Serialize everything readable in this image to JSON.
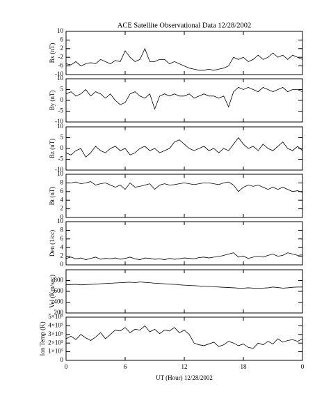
{
  "chart_data": [
    {
      "type": "line",
      "title": "ACE Satellite Observational Data   12/28/2002",
      "ylabel": "Bx (nT)",
      "ylim": [
        -10,
        10
      ],
      "yticks": [
        -10,
        -6,
        -2,
        2,
        6,
        10
      ],
      "xlim": [
        0,
        24
      ],
      "color": "#000000",
      "x": [
        0,
        0.5,
        1,
        1.5,
        2,
        2.5,
        3,
        3.5,
        4,
        4.5,
        5,
        5.5,
        6,
        6.5,
        7,
        7.5,
        8,
        8.5,
        9,
        9.5,
        10,
        10.5,
        11,
        11.5,
        12,
        12.5,
        13,
        13.5,
        14,
        14.5,
        15,
        15.5,
        16,
        16.5,
        17,
        17.5,
        18,
        18.5,
        19,
        19.5,
        20,
        20.5,
        21,
        21.5,
        22,
        22.5,
        23,
        23.5,
        24
      ],
      "values": [
        -5,
        -5.5,
        -4,
        -6,
        -5,
        -4.5,
        -5,
        -3,
        -4,
        -5,
        -3.5,
        -4,
        1,
        -2,
        -4,
        -3,
        2,
        -4,
        -4,
        -3,
        -3,
        -5,
        -4,
        -5,
        -6,
        -7,
        -7.5,
        -8,
        -8,
        -7.5,
        -8,
        -7.5,
        -7,
        -6,
        -2,
        -3,
        -2,
        -4,
        -3,
        -1,
        -3,
        -2,
        0,
        -2,
        -1,
        -3,
        -1,
        -2,
        -3
      ]
    },
    {
      "type": "line",
      "ylabel": "By (nT)",
      "ylim": [
        -10,
        10
      ],
      "yticks": [
        -10,
        -5,
        0,
        5,
        10
      ],
      "xlim": [
        0,
        24
      ],
      "color": "#000000",
      "x": [
        0,
        0.5,
        1,
        1.5,
        2,
        2.5,
        3,
        3.5,
        4,
        4.5,
        5,
        5.5,
        6,
        6.5,
        7,
        7.5,
        8,
        8.5,
        9,
        9.5,
        10,
        10.5,
        11,
        11.5,
        12,
        12.5,
        13,
        13.5,
        14,
        14.5,
        15,
        15.5,
        16,
        16.5,
        17,
        17.5,
        18,
        18.5,
        19,
        19.5,
        20,
        20.5,
        21,
        21.5,
        22,
        22.5,
        23,
        23.5,
        24
      ],
      "values": [
        3,
        4,
        2,
        3,
        5,
        2,
        4,
        3,
        1,
        3,
        0,
        -2,
        -1,
        3,
        4,
        2,
        1,
        3,
        -4,
        2,
        3,
        2,
        3,
        2,
        2,
        3,
        1,
        2,
        3,
        2,
        2,
        1,
        2,
        -3,
        4,
        6,
        5,
        6,
        5,
        4,
        6,
        5,
        4,
        5,
        6,
        4,
        5,
        5,
        4
      ]
    },
    {
      "type": "line",
      "ylabel": "Bz (nT)",
      "ylim": [
        -10,
        10
      ],
      "yticks": [
        -10,
        -5,
        0,
        5,
        10
      ],
      "xlim": [
        0,
        24
      ],
      "color": "#000000",
      "x": [
        0,
        0.5,
        1,
        1.5,
        2,
        2.5,
        3,
        3.5,
        4,
        4.5,
        5,
        5.5,
        6,
        6.5,
        7,
        7.5,
        8,
        8.5,
        9,
        9.5,
        10,
        10.5,
        11,
        11.5,
        12,
        12.5,
        13,
        13.5,
        14,
        14.5,
        15,
        15.5,
        16,
        16.5,
        17,
        17.5,
        18,
        18.5,
        19,
        19.5,
        20,
        20.5,
        21,
        21.5,
        22,
        22.5,
        23,
        23.5,
        24
      ],
      "values": [
        -2,
        -3,
        -1,
        0,
        -4,
        -2,
        1,
        -1,
        -2,
        0,
        1,
        -1,
        0,
        -3,
        -2,
        0,
        1,
        -1,
        0,
        -2,
        -1,
        0,
        3,
        4,
        2,
        0,
        -1,
        0,
        1,
        -1,
        0,
        -2,
        0,
        -1,
        2,
        5,
        2,
        0,
        1,
        -1,
        2,
        0,
        -1,
        1,
        3,
        0,
        -1,
        1,
        -1
      ]
    },
    {
      "type": "line",
      "ylabel": "Bt (nT)",
      "ylim": [
        0,
        10
      ],
      "yticks": [
        0,
        2,
        4,
        6,
        8,
        10
      ],
      "xlim": [
        0,
        24
      ],
      "color": "#000000",
      "x": [
        0,
        0.5,
        1,
        1.5,
        2,
        2.5,
        3,
        3.5,
        4,
        4.5,
        5,
        5.5,
        6,
        6.5,
        7,
        7.5,
        8,
        8.5,
        9,
        9.5,
        10,
        10.5,
        11,
        11.5,
        12,
        12.5,
        13,
        13.5,
        14,
        14.5,
        15,
        15.5,
        16,
        16.5,
        17,
        17.5,
        18,
        18.5,
        19,
        19.5,
        20,
        20.5,
        21,
        21.5,
        22,
        22.5,
        23,
        23.5,
        24
      ],
      "values": [
        8,
        8,
        8.2,
        7.8,
        8,
        8.3,
        7.5,
        7.8,
        8,
        7.5,
        7,
        7.5,
        6.5,
        8,
        7,
        7.2,
        7.5,
        7.8,
        6.5,
        7.5,
        7.8,
        7.5,
        7.6,
        7.8,
        8,
        7.8,
        7.6,
        7.8,
        8,
        8,
        7.8,
        7.6,
        8,
        8.2,
        7.5,
        6,
        7,
        7.5,
        7.2,
        7.5,
        7,
        6.5,
        7,
        6.5,
        7,
        6.5,
        6,
        6.2,
        5.8
      ]
    },
    {
      "type": "line",
      "ylabel": "Den (1/cc)",
      "ylim": [
        0,
        10
      ],
      "yticks": [
        0,
        2,
        4,
        6,
        8,
        10
      ],
      "xlim": [
        0,
        24
      ],
      "color": "#000000",
      "x": [
        0,
        0.5,
        1,
        1.5,
        2,
        2.5,
        3,
        3.5,
        4,
        4.5,
        5,
        5.5,
        6,
        6.5,
        7,
        7.5,
        8,
        8.5,
        9,
        9.5,
        10,
        10.5,
        11,
        11.5,
        12,
        12.5,
        13,
        13.5,
        14,
        14.5,
        15,
        15.5,
        16,
        16.5,
        17,
        17.5,
        18,
        18.5,
        19,
        19.5,
        20,
        20.5,
        21,
        21.5,
        22,
        22.5,
        23,
        23.5,
        24
      ],
      "values": [
        1.5,
        1.8,
        1.4,
        1.6,
        1.2,
        1.5,
        1.8,
        1.3,
        1.5,
        1.4,
        1.6,
        1.3,
        1.5,
        1.8,
        1.4,
        1.2,
        1.6,
        1.5,
        1.3,
        1.4,
        1.2,
        1.5,
        1.3,
        1.4,
        1.6,
        1.5,
        1.4,
        1.7,
        1.8,
        1.6,
        1.8,
        1.9,
        2.2,
        2.5,
        2.8,
        1.8,
        2,
        1.5,
        1.8,
        2,
        1.8,
        2.2,
        2.5,
        2,
        2.2,
        2.8,
        2.5,
        2.2,
        2.3
      ]
    },
    {
      "type": "line",
      "ylabel": "Vel (Km/sec)",
      "ylim": [
        200,
        1000
      ],
      "yticks": [
        200,
        400,
        600,
        800
      ],
      "xlim": [
        0,
        24
      ],
      "color": "#000000",
      "x": [
        0,
        0.5,
        1,
        1.5,
        2,
        2.5,
        3,
        3.5,
        4,
        4.5,
        5,
        5.5,
        6,
        6.5,
        7,
        7.5,
        8,
        8.5,
        9,
        9.5,
        10,
        10.5,
        11,
        11.5,
        12,
        12.5,
        13,
        13.5,
        14,
        14.5,
        15,
        15.5,
        16,
        16.5,
        17,
        17.5,
        18,
        18.5,
        19,
        19.5,
        20,
        20.5,
        21,
        21.5,
        22,
        22.5,
        23,
        23.5,
        24
      ],
      "values": [
        720,
        725,
        730,
        720,
        725,
        730,
        735,
        740,
        745,
        750,
        755,
        760,
        765,
        770,
        760,
        775,
        765,
        760,
        750,
        745,
        740,
        735,
        730,
        720,
        715,
        710,
        705,
        700,
        695,
        690,
        685,
        680,
        675,
        670,
        665,
        660,
        660,
        665,
        660,
        655,
        660,
        665,
        680,
        670,
        660,
        665,
        675,
        680,
        680
      ]
    },
    {
      "type": "line",
      "ylabel": "Ion Temp (K)",
      "ylim": [
        0,
        500000
      ],
      "yticks": [
        0,
        {
          "value": 100000,
          "label": "1×10⁵"
        },
        {
          "value": 200000,
          "label": "2×10⁵"
        },
        {
          "value": 300000,
          "label": "3×10⁵"
        },
        {
          "value": 400000,
          "label": "4×10⁵"
        },
        {
          "value": 500000,
          "label": "5×10⁵"
        }
      ],
      "xlim": [
        0,
        24
      ],
      "xticks": [
        0,
        6,
        12,
        18,
        {
          "value": 24,
          "label": "0"
        }
      ],
      "xlabel": "UT (Hour)  12/28/2002",
      "color": "#000000",
      "x": [
        0,
        0.5,
        1,
        1.5,
        2,
        2.5,
        3,
        3.5,
        4,
        4.5,
        5,
        5.5,
        6,
        6.5,
        7,
        7.5,
        8,
        8.5,
        9,
        9.5,
        10,
        10.5,
        11,
        11.5,
        12,
        12.5,
        13,
        13.5,
        14,
        14.5,
        15,
        15.5,
        16,
        16.5,
        17,
        17.5,
        18,
        18.5,
        19,
        19.5,
        20,
        20.5,
        21,
        21.5,
        22,
        22.5,
        23,
        23.5,
        24
      ],
      "values": [
        250000,
        280000,
        240000,
        300000,
        260000,
        230000,
        270000,
        320000,
        250000,
        300000,
        350000,
        340000,
        380000,
        320000,
        360000,
        350000,
        400000,
        330000,
        360000,
        310000,
        350000,
        340000,
        380000,
        320000,
        350000,
        300000,
        200000,
        180000,
        170000,
        190000,
        210000,
        160000,
        180000,
        220000,
        200000,
        170000,
        190000,
        150000,
        140000,
        200000,
        180000,
        220000,
        190000,
        250000,
        210000,
        230000,
        240000,
        220000,
        250000
      ]
    }
  ]
}
